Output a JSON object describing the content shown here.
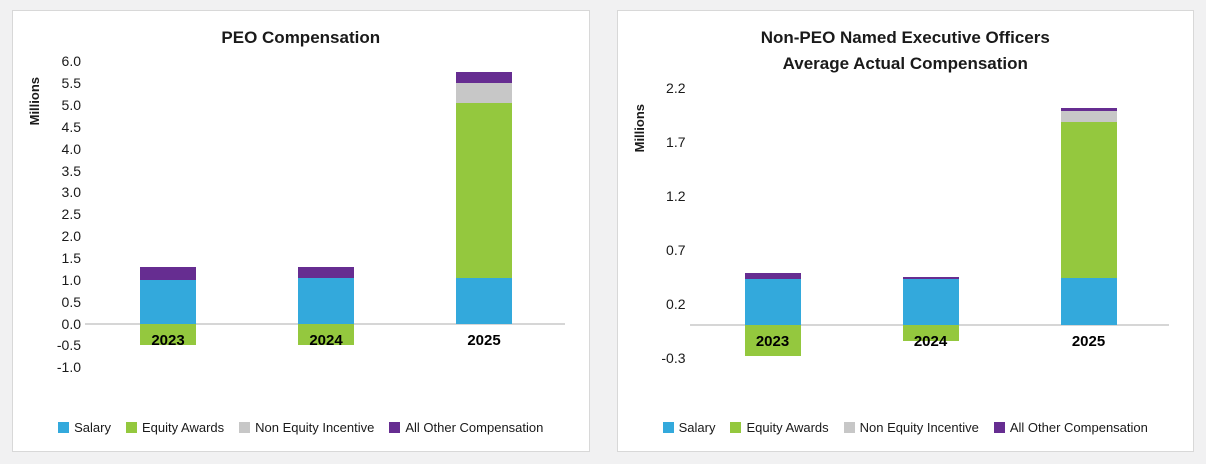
{
  "colors": {
    "salary": "#33a9dc",
    "equity_awards": "#94c83e",
    "non_equity_incentive": "#c7c7c7",
    "all_other_compensation": "#662d91",
    "axis_line": "#d6d6d6",
    "card_border": "#d8d8d8",
    "page_background": "#f1f1f2"
  },
  "chart_data": [
    {
      "type": "bar",
      "stacked": true,
      "title": "PEO Compensation",
      "title_lines": [
        "PEO Compensation"
      ],
      "ylabel": "Millions",
      "xlabel": "",
      "categories": [
        "2023",
        "2024",
        "2025"
      ],
      "series": [
        {
          "name": "Salary",
          "color": "#33a9dc",
          "values": [
            1.0,
            1.05,
            1.05
          ]
        },
        {
          "name": "Equity Awards",
          "color": "#94c83e",
          "values": [
            -0.5,
            -0.5,
            4.0
          ]
        },
        {
          "name": "Non Equity Incentive",
          "color": "#c7c7c7",
          "values": [
            0,
            0,
            0.45
          ]
        },
        {
          "name": "All Other Compensation",
          "color": "#662d91",
          "values": [
            0.3,
            0.25,
            0.25
          ]
        }
      ],
      "ylim": [
        -1.0,
        6.0
      ],
      "ytick_labels": [
        "6.0",
        "5.5",
        "5.0",
        "4.5",
        "4.0",
        "3.5",
        "3.0",
        "2.5",
        "2.0",
        "1.5",
        "1.0",
        "0.5",
        "0.0",
        "-0.5",
        "-1.0"
      ],
      "grid": false,
      "legend_position": "bottom"
    },
    {
      "type": "bar",
      "stacked": true,
      "title": "Non-PEO Named Executive Officers Average Actual Compensation",
      "title_lines": [
        "Non-PEO Named Executive Officers",
        "Average Actual Compensation"
      ],
      "ylabel": "Millions",
      "xlabel": "",
      "categories": [
        "2023",
        "2024",
        "2025"
      ],
      "series": [
        {
          "name": "Salary",
          "color": "#33a9dc",
          "values": [
            0.43,
            0.43,
            0.44
          ]
        },
        {
          "name": "Equity Awards",
          "color": "#94c83e",
          "values": [
            -0.28,
            -0.15,
            1.44
          ]
        },
        {
          "name": "Non Equity Incentive",
          "color": "#c7c7c7",
          "values": [
            0,
            0,
            0.1
          ]
        },
        {
          "name": "All Other Compensation",
          "color": "#662d91",
          "values": [
            0.05,
            0.02,
            0.03
          ]
        }
      ],
      "ylim": [
        -0.3,
        2.2
      ],
      "ytick_labels": [
        "2.2",
        "1.7",
        "1.2",
        "0.7",
        "0.2",
        "-0.3"
      ],
      "grid": false,
      "legend_position": "bottom"
    }
  ]
}
